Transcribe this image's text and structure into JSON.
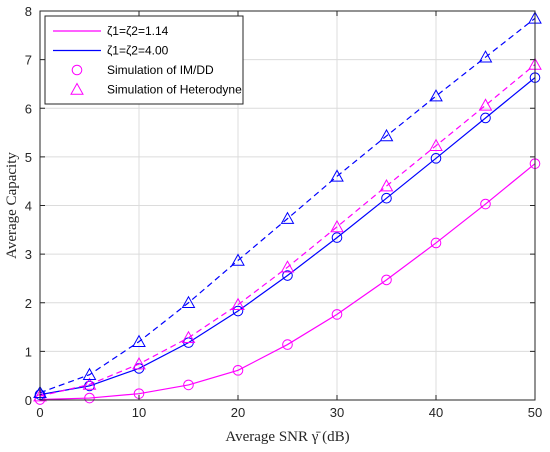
{
  "chart_data": {
    "type": "line",
    "xlabel": "Average SNR γ̄ (dB)",
    "ylabel": "Average Capacity",
    "xlim": [
      0,
      50
    ],
    "ylim": [
      0,
      8
    ],
    "xticks": [
      "0",
      "10",
      "20",
      "30",
      "40",
      "50"
    ],
    "yticks": [
      "0",
      "1",
      "2",
      "3",
      "4",
      "5",
      "6",
      "7",
      "8"
    ],
    "grid": true,
    "legend_position": "top-left",
    "colors": {
      "magenta": "#ff00ff",
      "blue": "#0000ff"
    },
    "legend": [
      {
        "label": "ζ1=ζ2=1.14",
        "line": "solid",
        "color": "#ff00ff",
        "marker": "none"
      },
      {
        "label": "ζ1=ζ2=4.00",
        "line": "solid",
        "color": "#0000ff",
        "marker": "none"
      },
      {
        "label": "Simulation of IM/DD",
        "line": "none",
        "color": "#ff00ff",
        "marker": "circle"
      },
      {
        "label": "Simulation of Heterodyne",
        "line": "none",
        "color": "#ff00ff",
        "marker": "triangle"
      }
    ],
    "x": [
      0,
      5,
      10,
      15,
      20,
      25,
      30,
      35,
      40,
      45,
      50
    ],
    "series": [
      {
        "id": "imdd-1.14",
        "color": "#ff00ff",
        "dash": "solid",
        "marker": "circle",
        "values": [
          0.01,
          0.04,
          0.13,
          0.31,
          0.61,
          1.14,
          1.76,
          2.47,
          3.23,
          4.03,
          4.86
        ]
      },
      {
        "id": "imdd-4.00",
        "color": "#0000ff",
        "dash": "solid",
        "marker": "circle",
        "values": [
          0.11,
          0.29,
          0.65,
          1.18,
          1.83,
          2.56,
          3.34,
          4.15,
          4.97,
          5.8,
          6.63
        ]
      },
      {
        "id": "het-1.14",
        "color": "#ff00ff",
        "dash": "dashed",
        "marker": "triangle",
        "values": [
          0.08,
          0.32,
          0.74,
          1.28,
          1.96,
          2.73,
          3.56,
          4.4,
          5.23,
          6.06,
          6.9
        ]
      },
      {
        "id": "het-4.00",
        "color": "#0000ff",
        "dash": "dashed",
        "marker": "triangle",
        "values": [
          0.15,
          0.52,
          1.2,
          2.0,
          2.87,
          3.73,
          4.6,
          5.43,
          6.25,
          7.05,
          7.85
        ]
      }
    ]
  }
}
